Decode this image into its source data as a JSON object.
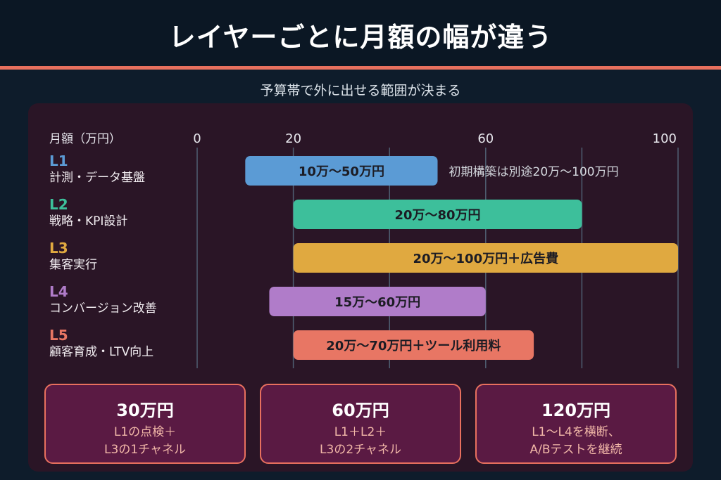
{
  "header": {
    "title": "レイヤーごとに月額の幅が違う",
    "subtitle": "予算帯で外に出せる範囲が決まる"
  },
  "colors": {
    "accent": "#e8705e",
    "L1": "#5b9bd5",
    "L2": "#3dbf9b",
    "L3": "#e0a940",
    "L4": "#b07cc9",
    "L5": "#e87664"
  },
  "chart_data": {
    "type": "bar",
    "orientation": "horizontal-range",
    "axis_title": "月額（万円）",
    "xlim": [
      0,
      100
    ],
    "ticks": [
      0,
      20,
      60,
      100
    ],
    "grid": true,
    "rows": [
      {
        "code": "L1",
        "name": "計測・データ基盤",
        "start": 10,
        "end": 50,
        "label": "10万〜50万円",
        "note": "初期構築は別途20万〜100万円"
      },
      {
        "code": "L2",
        "name": "戦略・KPI設計",
        "start": 20,
        "end": 80,
        "label": "20万〜80万円"
      },
      {
        "code": "L3",
        "name": "集客実行",
        "start": 20,
        "end": 100,
        "label": "20万〜100万円＋広告費"
      },
      {
        "code": "L4",
        "name": "コンバージョン改善",
        "start": 15,
        "end": 60,
        "label": "15万〜60万円"
      },
      {
        "code": "L5",
        "name": "顧客育成・LTV向上",
        "start": 20,
        "end": 70,
        "label": "20万〜70万円＋ツール利用料"
      }
    ]
  },
  "cards": [
    {
      "amount": "30万円",
      "line1": "L1の点検＋",
      "line2": "L3の1チャネル"
    },
    {
      "amount": "60万円",
      "line1": "L1＋L2＋",
      "line2": "L3の2チャネル"
    },
    {
      "amount": "120万円",
      "line1": "L1〜L4を横断、",
      "line2": "A/Bテストを継続"
    }
  ]
}
